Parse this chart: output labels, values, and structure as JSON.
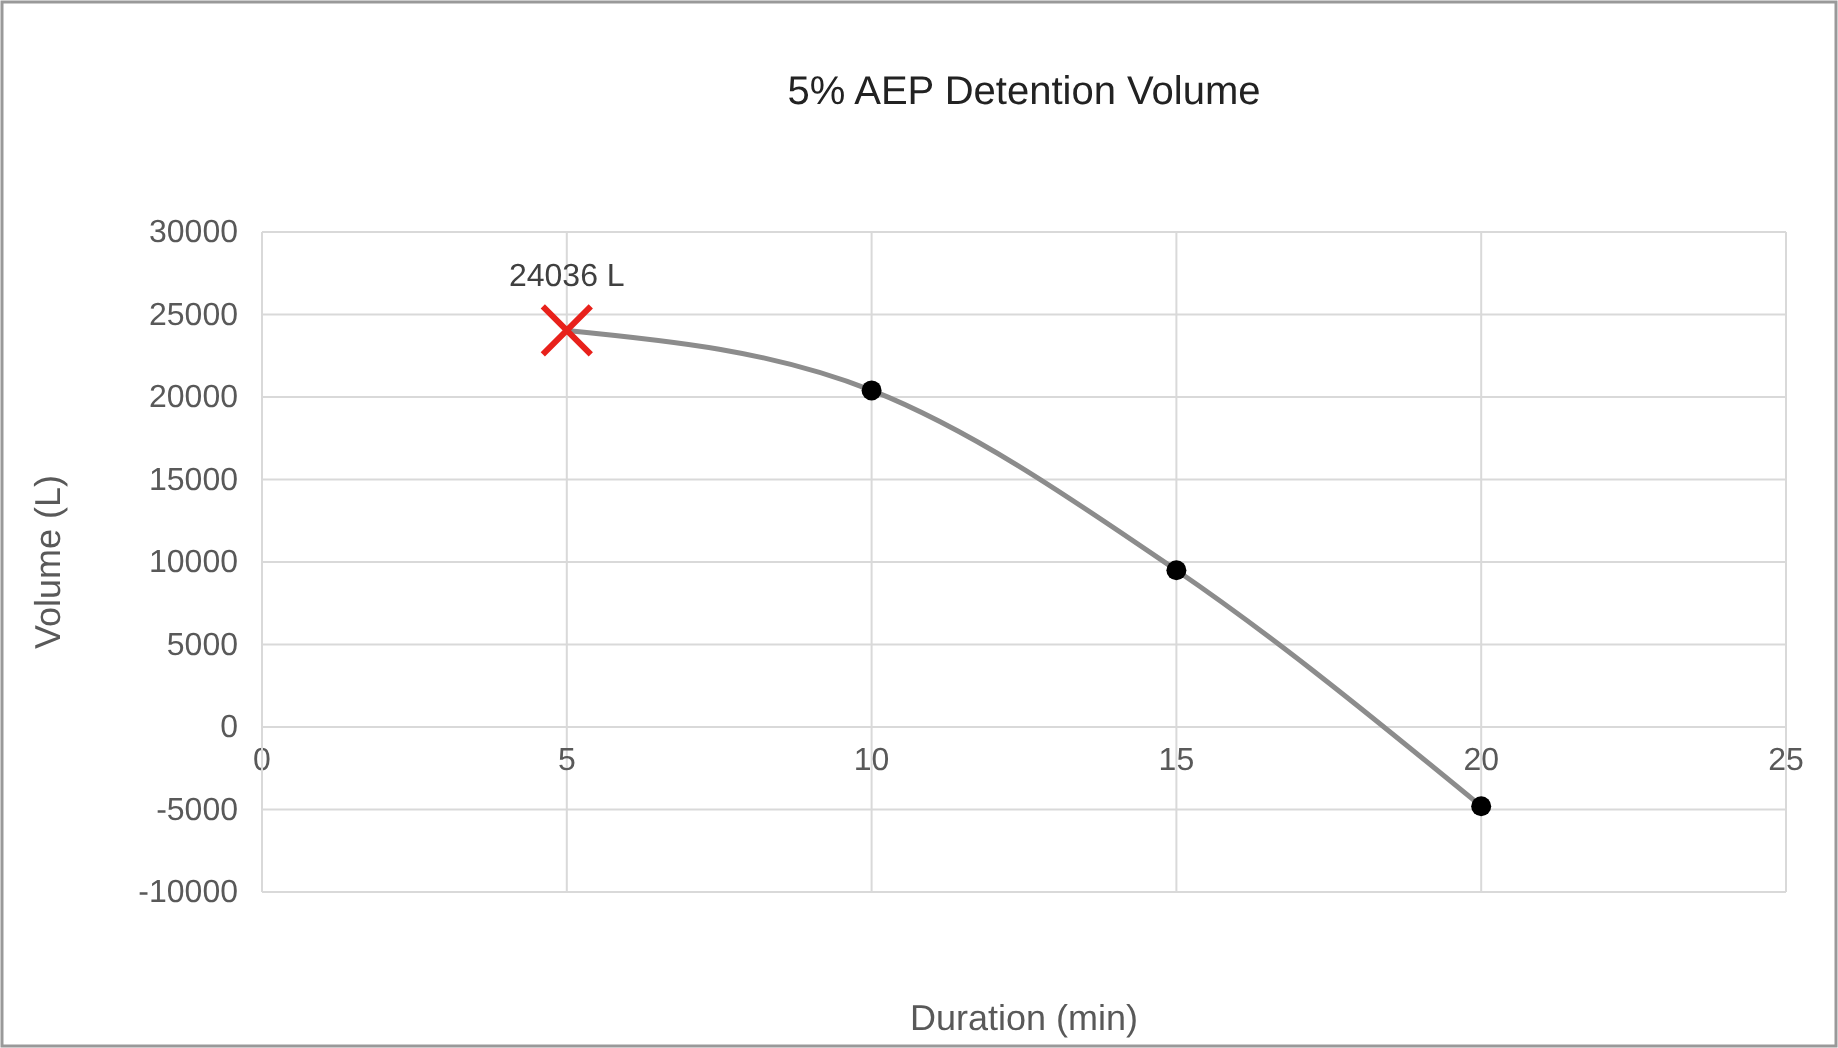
{
  "chart_data": {
    "type": "line",
    "title": "5% AEP Detention Volume",
    "xlabel": "Duration (min)",
    "ylabel": "Volume (L)",
    "x": [
      5,
      10,
      15,
      20
    ],
    "series": [
      {
        "color": "#8c8c8c",
        "values": [
          24036,
          20400,
          9500,
          -4800
        ],
        "marker": "none"
      },
      {
        "type": "scatter",
        "color": "#000000",
        "x": [
          10,
          15,
          20
        ],
        "values": [
          20400,
          9500,
          -4800
        ],
        "marker": "circle"
      },
      {
        "type": "scatter",
        "color": "#e8211b",
        "x": [
          5
        ],
        "values": [
          24036
        ],
        "marker": "cross"
      }
    ],
    "annotations": [
      {
        "text": "24036 L",
        "x": 5,
        "y": 24036
      }
    ],
    "xlim": [
      0,
      25
    ],
    "xticks": [
      0,
      5,
      10,
      15,
      20,
      25
    ],
    "ylim": [
      -10000,
      30000
    ],
    "yticks": [
      -10000,
      -5000,
      0,
      5000,
      10000,
      15000,
      20000,
      25000,
      30000
    ],
    "grid": true
  }
}
